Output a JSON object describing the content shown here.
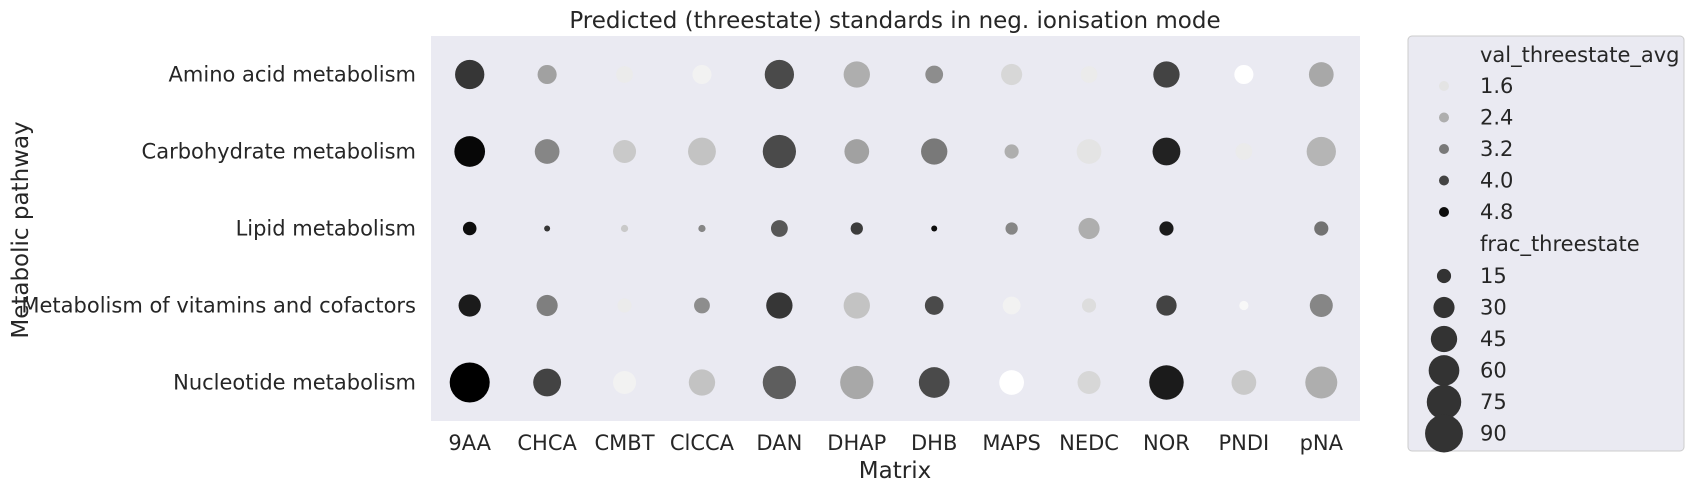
{
  "chart_data": {
    "type": "scatter",
    "title": "Predicted (threestate) standards in neg. ionisation mode",
    "xlabel": "Matrix",
    "ylabel": "Metabolic pathway",
    "x_categories": [
      "9AA",
      "CHCA",
      "CMBT",
      "ClCCA",
      "DAN",
      "DHAP",
      "DHB",
      "MAPS",
      "NEDC",
      "NOR",
      "PNDI",
      "pNA"
    ],
    "y_categories": [
      "Amino acid metabolism",
      "Carbohydrate metabolism",
      "Lipid metabolism",
      "Metabolism of vitamins and cofactors",
      "Nucleotide metabolism"
    ],
    "grid": false,
    "legend_position": "outside-right",
    "hue_variable": "val_threestate_avg",
    "size_variable": "frac_threestate",
    "hue_range": [
      1.2,
      5.0
    ],
    "size_range": [
      5,
      100
    ],
    "legend": {
      "hue_title": "val_threestate_avg",
      "hue_entries": [
        {
          "label": "1.6",
          "value": 1.6
        },
        {
          "label": "2.4",
          "value": 2.4
        },
        {
          "label": "3.2",
          "value": 3.2
        },
        {
          "label": "4.0",
          "value": 4.0
        },
        {
          "label": "4.8",
          "value": 4.8
        }
      ],
      "size_title": "frac_threestate",
      "size_entries": [
        {
          "label": "15",
          "value": 15
        },
        {
          "label": "30",
          "value": 30
        },
        {
          "label": "45",
          "value": 45
        },
        {
          "label": "60",
          "value": 60
        },
        {
          "label": "75",
          "value": 75
        },
        {
          "label": "90",
          "value": 90
        }
      ]
    },
    "points": [
      {
        "pathway": "Amino acid metabolism",
        "matrix": "9AA",
        "val_threestate_avg": 4.2,
        "frac_threestate": 55
      },
      {
        "pathway": "Amino acid metabolism",
        "matrix": "CHCA",
        "val_threestate_avg": 2.6,
        "frac_threestate": 25
      },
      {
        "pathway": "Amino acid metabolism",
        "matrix": "CMBT",
        "val_threestate_avg": 1.5,
        "frac_threestate": 20
      },
      {
        "pathway": "Amino acid metabolism",
        "matrix": "ClCCA",
        "val_threestate_avg": 1.4,
        "frac_threestate": 25
      },
      {
        "pathway": "Amino acid metabolism",
        "matrix": "DAN",
        "val_threestate_avg": 3.9,
        "frac_threestate": 55
      },
      {
        "pathway": "Amino acid metabolism",
        "matrix": "DHAP",
        "val_threestate_avg": 2.4,
        "frac_threestate": 45
      },
      {
        "pathway": "Amino acid metabolism",
        "matrix": "DHB",
        "val_threestate_avg": 2.9,
        "frac_threestate": 22
      },
      {
        "pathway": "Amino acid metabolism",
        "matrix": "MAPS",
        "val_threestate_avg": 1.8,
        "frac_threestate": 30
      },
      {
        "pathway": "Amino acid metabolism",
        "matrix": "NEDC",
        "val_threestate_avg": 1.5,
        "frac_threestate": 20
      },
      {
        "pathway": "Amino acid metabolism",
        "matrix": "NOR",
        "val_threestate_avg": 4.0,
        "frac_threestate": 45
      },
      {
        "pathway": "Amino acid metabolism",
        "matrix": "PNDI",
        "val_threestate_avg": 1.2,
        "frac_threestate": 25
      },
      {
        "pathway": "Amino acid metabolism",
        "matrix": "pNA",
        "val_threestate_avg": 2.5,
        "frac_threestate": 40
      },
      {
        "pathway": "Carbohydrate metabolism",
        "matrix": "9AA",
        "val_threestate_avg": 4.9,
        "frac_threestate": 60
      },
      {
        "pathway": "Carbohydrate metabolism",
        "matrix": "CHCA",
        "val_threestate_avg": 3.0,
        "frac_threestate": 40
      },
      {
        "pathway": "Carbohydrate metabolism",
        "matrix": "CMBT",
        "val_threestate_avg": 2.0,
        "frac_threestate": 35
      },
      {
        "pathway": "Carbohydrate metabolism",
        "matrix": "ClCCA",
        "val_threestate_avg": 2.1,
        "frac_threestate": 50
      },
      {
        "pathway": "Carbohydrate metabolism",
        "matrix": "DAN",
        "val_threestate_avg": 3.9,
        "frac_threestate": 70
      },
      {
        "pathway": "Carbohydrate metabolism",
        "matrix": "DHAP",
        "val_threestate_avg": 2.6,
        "frac_threestate": 40
      },
      {
        "pathway": "Carbohydrate metabolism",
        "matrix": "DHB",
        "val_threestate_avg": 3.2,
        "frac_threestate": 45
      },
      {
        "pathway": "Carbohydrate metabolism",
        "matrix": "MAPS",
        "val_threestate_avg": 2.4,
        "frac_threestate": 15
      },
      {
        "pathway": "Carbohydrate metabolism",
        "matrix": "NEDC",
        "val_threestate_avg": 1.6,
        "frac_threestate": 40
      },
      {
        "pathway": "Carbohydrate metabolism",
        "matrix": "NOR",
        "val_threestate_avg": 4.5,
        "frac_threestate": 50
      },
      {
        "pathway": "Carbohydrate metabolism",
        "matrix": "PNDI",
        "val_threestate_avg": 1.5,
        "frac_threestate": 20
      },
      {
        "pathway": "Carbohydrate metabolism",
        "matrix": "pNA",
        "val_threestate_avg": 2.3,
        "frac_threestate": 55
      },
      {
        "pathway": "Lipid metabolism",
        "matrix": "9AA",
        "val_threestate_avg": 4.8,
        "frac_threestate": 14
      },
      {
        "pathway": "Lipid metabolism",
        "matrix": "CHCA",
        "val_threestate_avg": 4.2,
        "frac_threestate": 4
      },
      {
        "pathway": "Lipid metabolism",
        "matrix": "CMBT",
        "val_threestate_avg": 2.0,
        "frac_threestate": 6
      },
      {
        "pathway": "Lipid metabolism",
        "matrix": "ClCCA",
        "val_threestate_avg": 3.0,
        "frac_threestate": 6
      },
      {
        "pathway": "Lipid metabolism",
        "matrix": "DAN",
        "val_threestate_avg": 3.7,
        "frac_threestate": 20
      },
      {
        "pathway": "Lipid metabolism",
        "matrix": "DHAP",
        "val_threestate_avg": 4.1,
        "frac_threestate": 12
      },
      {
        "pathway": "Lipid metabolism",
        "matrix": "DHB",
        "val_threestate_avg": 4.8,
        "frac_threestate": 4
      },
      {
        "pathway": "Lipid metabolism",
        "matrix": "MAPS",
        "val_threestate_avg": 3.0,
        "frac_threestate": 12
      },
      {
        "pathway": "Lipid metabolism",
        "matrix": "NEDC",
        "val_threestate_avg": 2.4,
        "frac_threestate": 30
      },
      {
        "pathway": "Lipid metabolism",
        "matrix": "NOR",
        "val_threestate_avg": 4.6,
        "frac_threestate": 15
      },
      {
        "pathway": "Lipid metabolism",
        "matrix": "pNA",
        "val_threestate_avg": 3.3,
        "frac_threestate": 15
      },
      {
        "pathway": "Metabolism of vitamins and cofactors",
        "matrix": "9AA",
        "val_threestate_avg": 4.6,
        "frac_threestate": 33
      },
      {
        "pathway": "Metabolism of vitamins and cofactors",
        "matrix": "CHCA",
        "val_threestate_avg": 3.1,
        "frac_threestate": 30
      },
      {
        "pathway": "Metabolism of vitamins and cofactors",
        "matrix": "CMBT",
        "val_threestate_avg": 1.5,
        "frac_threestate": 15
      },
      {
        "pathway": "Metabolism of vitamins and cofactors",
        "matrix": "ClCCA",
        "val_threestate_avg": 2.9,
        "frac_threestate": 18
      },
      {
        "pathway": "Metabolism of vitamins and cofactors",
        "matrix": "DAN",
        "val_threestate_avg": 4.2,
        "frac_threestate": 45
      },
      {
        "pathway": "Metabolism of vitamins and cofactors",
        "matrix": "DHAP",
        "val_threestate_avg": 2.1,
        "frac_threestate": 45
      },
      {
        "pathway": "Metabolism of vitamins and cofactors",
        "matrix": "DHB",
        "val_threestate_avg": 3.9,
        "frac_threestate": 24
      },
      {
        "pathway": "Metabolism of vitamins and cofactors",
        "matrix": "MAPS",
        "val_threestate_avg": 1.4,
        "frac_threestate": 22
      },
      {
        "pathway": "Metabolism of vitamins and cofactors",
        "matrix": "NEDC",
        "val_threestate_avg": 1.7,
        "frac_threestate": 15
      },
      {
        "pathway": "Metabolism of vitamins and cofactors",
        "matrix": "NOR",
        "val_threestate_avg": 4.0,
        "frac_threestate": 28
      },
      {
        "pathway": "Metabolism of vitamins and cofactors",
        "matrix": "PNDI",
        "val_threestate_avg": 1.3,
        "frac_threestate": 8
      },
      {
        "pathway": "Metabolism of vitamins and cofactors",
        "matrix": "pNA",
        "val_threestate_avg": 3.0,
        "frac_threestate": 35
      },
      {
        "pathway": "Nucleotide metabolism",
        "matrix": "9AA",
        "val_threestate_avg": 5.0,
        "frac_threestate": 100
      },
      {
        "pathway": "Nucleotide metabolism",
        "matrix": "CHCA",
        "val_threestate_avg": 4.0,
        "frac_threestate": 50
      },
      {
        "pathway": "Nucleotide metabolism",
        "matrix": "CMBT",
        "val_threestate_avg": 1.4,
        "frac_threestate": 35
      },
      {
        "pathway": "Nucleotide metabolism",
        "matrix": "ClCCA",
        "val_threestate_avg": 2.1,
        "frac_threestate": 45
      },
      {
        "pathway": "Nucleotide metabolism",
        "matrix": "DAN",
        "val_threestate_avg": 3.6,
        "frac_threestate": 70
      },
      {
        "pathway": "Nucleotide metabolism",
        "matrix": "DHAP",
        "val_threestate_avg": 2.5,
        "frac_threestate": 70
      },
      {
        "pathway": "Nucleotide metabolism",
        "matrix": "DHB",
        "val_threestate_avg": 3.9,
        "frac_threestate": 60
      },
      {
        "pathway": "Nucleotide metabolism",
        "matrix": "MAPS",
        "val_threestate_avg": 1.2,
        "frac_threestate": 40
      },
      {
        "pathway": "Nucleotide metabolism",
        "matrix": "NEDC",
        "val_threestate_avg": 1.8,
        "frac_threestate": 35
      },
      {
        "pathway": "Nucleotide metabolism",
        "matrix": "NOR",
        "val_threestate_avg": 4.6,
        "frac_threestate": 75
      },
      {
        "pathway": "Nucleotide metabolism",
        "matrix": "PNDI",
        "val_threestate_avg": 2.0,
        "frac_threestate": 40
      },
      {
        "pathway": "Nucleotide metabolism",
        "matrix": "pNA",
        "val_threestate_avg": 2.4,
        "frac_threestate": 65
      }
    ]
  },
  "colors": {
    "plot_background": "#eaeaf2",
    "legend_background": "#eaeaf2",
    "legend_border": "#cccccc",
    "text": "#262626"
  }
}
